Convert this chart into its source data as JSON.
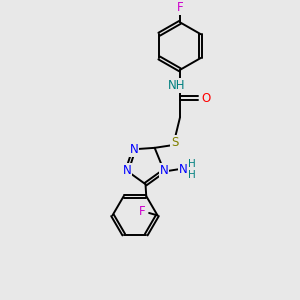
{
  "bg_color": "#e8e8e8",
  "bond_color": "#000000",
  "N_color": "#0000ff",
  "O_color": "#ff0000",
  "S_color": "#808000",
  "F_color": "#cc00cc",
  "NH_color": "#008080",
  "figsize": [
    3.0,
    3.0
  ],
  "dpi": 100,
  "xlim": [
    0,
    10
  ],
  "ylim": [
    0,
    10
  ]
}
